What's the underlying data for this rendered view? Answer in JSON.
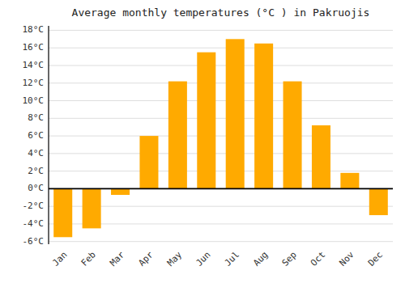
{
  "chart_data": {
    "type": "bar",
    "title": "Average monthly temperatures (°C ) in Pakruojis",
    "categories": [
      "Jan",
      "Feb",
      "Mar",
      "Apr",
      "May",
      "Jun",
      "Jul",
      "Aug",
      "Sep",
      "Oct",
      "Nov",
      "Dec"
    ],
    "values": [
      -5.5,
      -4.5,
      -0.7,
      6.0,
      12.2,
      15.5,
      17.0,
      16.5,
      12.2,
      7.2,
      1.8,
      -3.0
    ],
    "color": "#FFAA00",
    "ylim": [
      -6.3,
      18.5
    ],
    "yticks": [
      {
        "value": -6,
        "label": "-6°C"
      },
      {
        "value": -4,
        "label": "-4°C"
      },
      {
        "value": -2,
        "label": "-2°C"
      },
      {
        "value": 0,
        "label": "0°C"
      },
      {
        "value": 2,
        "label": "2°C"
      },
      {
        "value": 4,
        "label": "4°C"
      },
      {
        "value": 6,
        "label": "6°C"
      },
      {
        "value": 8,
        "label": "8°C"
      },
      {
        "value": 10,
        "label": "10°C"
      },
      {
        "value": 12,
        "label": "12°C"
      },
      {
        "value": 14,
        "label": "14°C"
      },
      {
        "value": 16,
        "label": "16°C"
      },
      {
        "value": 18,
        "label": "18°C"
      }
    ],
    "grid": true
  }
}
